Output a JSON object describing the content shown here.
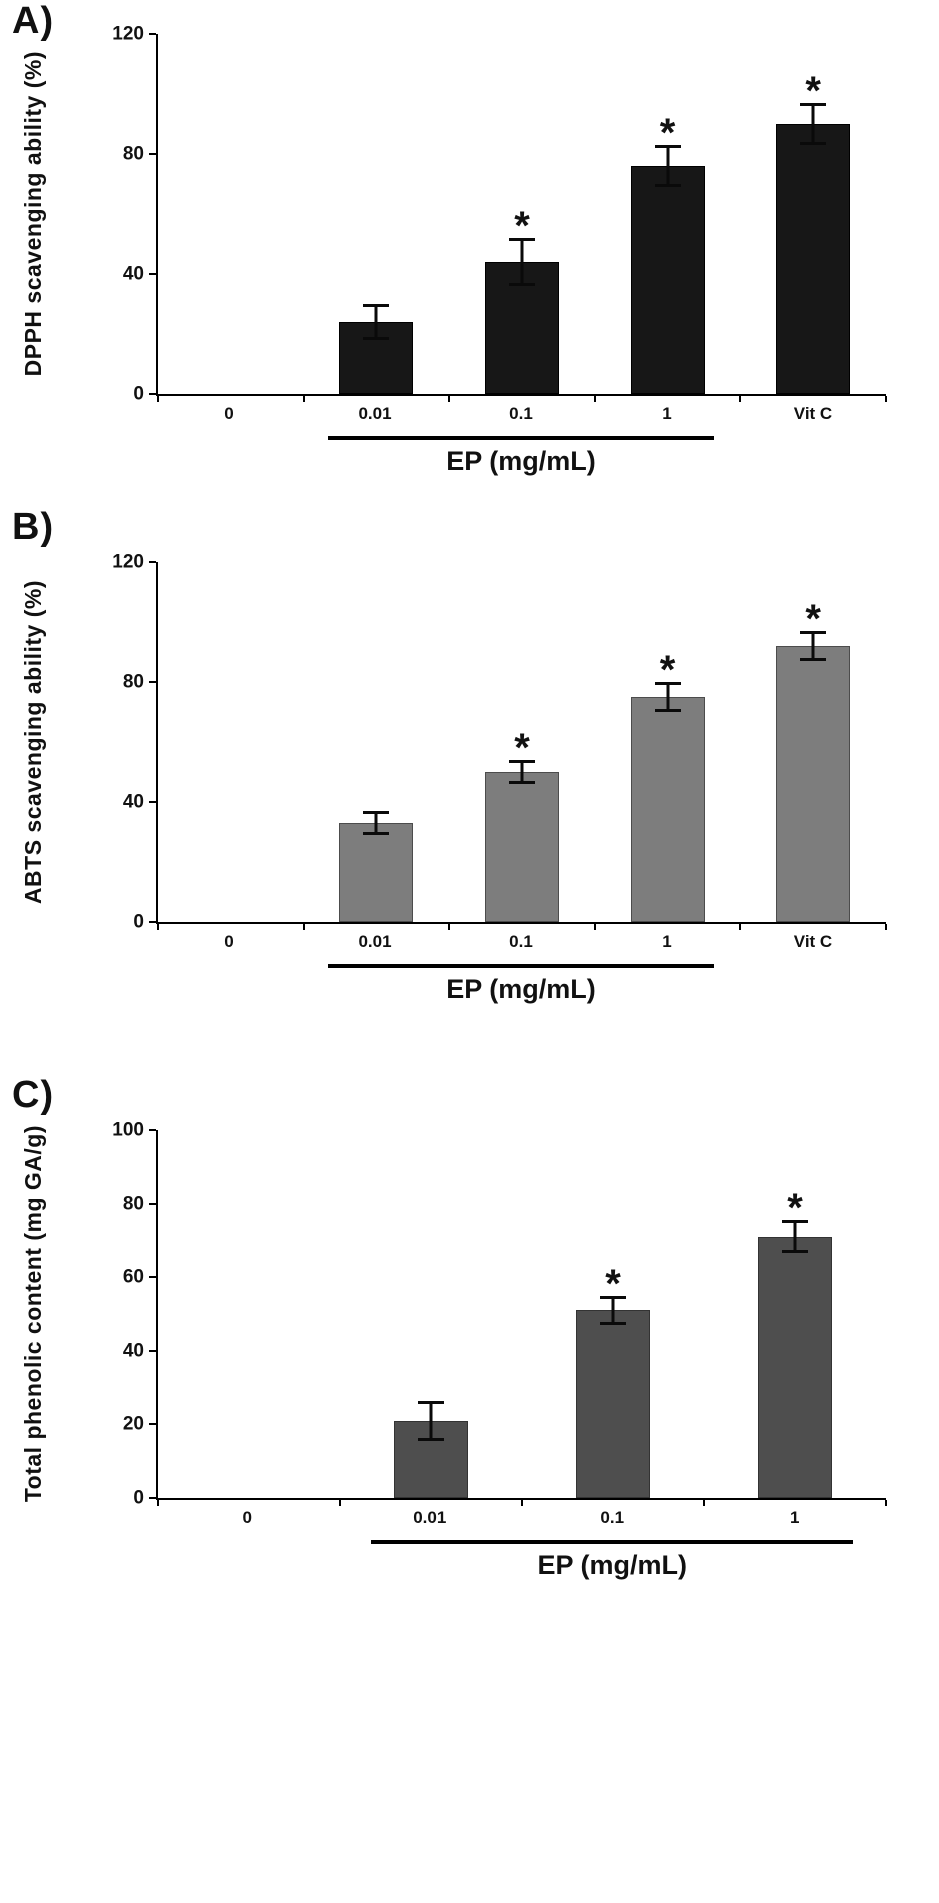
{
  "figure": {
    "description": "Three-panel bar figure"
  },
  "chart_data": [
    {
      "type": "bar",
      "panel_label": "A)",
      "title": "",
      "ylabel": "DPPH scavenging ability (%)",
      "xlabel": "EP (mg/mL)",
      "categories": [
        "0",
        "0.01",
        "0.1",
        "1",
        "Vit C"
      ],
      "values": [
        0,
        24,
        44,
        76,
        90
      ],
      "errors": [
        0,
        6,
        8,
        7,
        7
      ],
      "significance": [
        "",
        "",
        "*",
        "*",
        "*"
      ],
      "ylim": [
        0,
        120
      ],
      "yticks": [
        0,
        40,
        80,
        120
      ],
      "bar_color": "#171717",
      "bar_border": "#000000",
      "bracket_from": "0.01",
      "bracket_to": "1",
      "grid": false,
      "legend": "none"
    },
    {
      "type": "bar",
      "panel_label": "B)",
      "title": "",
      "ylabel": "ABTS scavenging ability (%)",
      "xlabel": "EP (mg/mL)",
      "categories": [
        "0",
        "0.01",
        "0.1",
        "1",
        "Vit C"
      ],
      "values": [
        0,
        33,
        50,
        75,
        92
      ],
      "errors": [
        0,
        4,
        4,
        5,
        5
      ],
      "significance": [
        "",
        "",
        "*",
        "*",
        "*"
      ],
      "ylim": [
        0,
        120
      ],
      "yticks": [
        0,
        40,
        80,
        120
      ],
      "bar_color": "#7d7d7d",
      "bar_border": "#4c4c4c",
      "bracket_from": "0.01",
      "bracket_to": "1",
      "grid": false,
      "legend": "none"
    },
    {
      "type": "bar",
      "panel_label": "C)",
      "title": "",
      "ylabel": "Total phenolic content (mg GA/g)",
      "xlabel": "EP (mg/mL)",
      "categories": [
        "0",
        "0.01",
        "0.1",
        "1"
      ],
      "values": [
        0,
        21,
        51,
        71
      ],
      "errors": [
        0,
        5.5,
        4,
        4.5
      ],
      "significance": [
        "",
        "",
        "*",
        "*"
      ],
      "ylim": [
        0,
        100
      ],
      "yticks": [
        0,
        20,
        40,
        60,
        80,
        100
      ],
      "bar_color": "#4e4e4e",
      "bar_border": "#333333",
      "bracket_from": "0.01",
      "bracket_to": "1",
      "grid": false,
      "legend": "none"
    }
  ]
}
